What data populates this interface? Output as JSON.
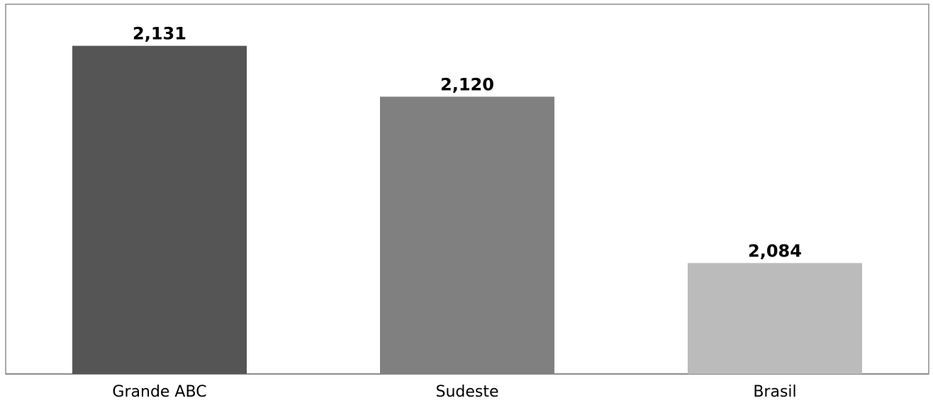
{
  "chart_data": {
    "type": "bar",
    "categories": [
      "Grande ABC",
      "Sudeste",
      "Brasil"
    ],
    "values": [
      2.131,
      2.12,
      2.084
    ],
    "value_labels": [
      "2,131",
      "2,120",
      "2,084"
    ],
    "bar_colors": [
      "#555555",
      "#808080",
      "#bbbbbb"
    ],
    "ylim": [
      2.06,
      2.14
    ],
    "grid": false,
    "legend": "none"
  }
}
